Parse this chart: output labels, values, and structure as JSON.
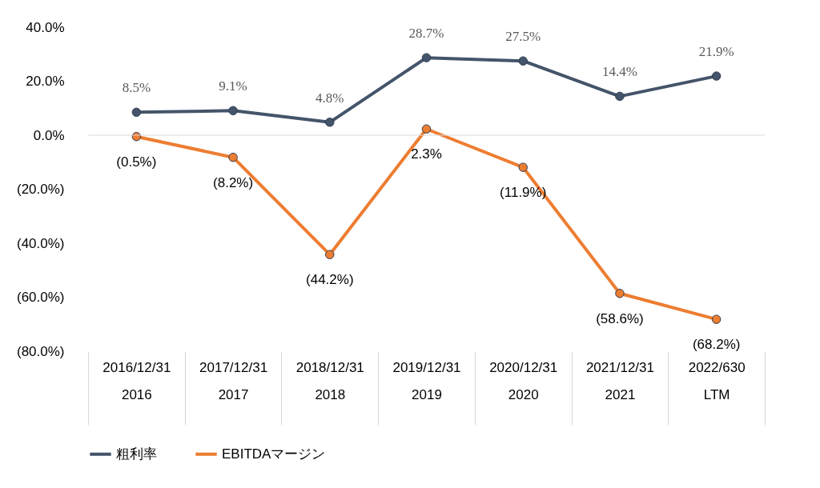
{
  "chart_data": {
    "type": "line",
    "categories": [
      "2016/12/31\n2016",
      "2017/12/31\n2017",
      "2018/12/31\n2018",
      "2019/12/31\n2019",
      "2020/12/31\n2020",
      "2021/12/31\n2021",
      "2022/630\nLTM"
    ],
    "series": [
      {
        "name": "粗利率",
        "color": "#44546a",
        "values": [
          8.5,
          9.1,
          4.8,
          28.7,
          27.5,
          14.4,
          21.9
        ],
        "value_labels": [
          "8.5%",
          "9.1%",
          "4.8%",
          "28.7%",
          "27.5%",
          "14.4%",
          "21.9%"
        ]
      },
      {
        "name": "EBITDAマージン",
        "color": "#ed7d31",
        "values": [
          -0.5,
          -8.2,
          -44.2,
          2.3,
          -11.9,
          -58.6,
          -68.2
        ],
        "value_labels": [
          "(0.5%)",
          "(8.2%)",
          "(44.2%)",
          "2.3%",
          "(11.9%)",
          "(58.6%)",
          "(68.2%)"
        ]
      }
    ],
    "ylim": [
      -80,
      40
    ],
    "yticks": [
      {
        "value": 40,
        "label": "40.0%"
      },
      {
        "value": 20,
        "label": "20.0%"
      },
      {
        "value": 0,
        "label": "0.0%"
      },
      {
        "value": -20,
        "label": "(20.0%)"
      },
      {
        "value": -40,
        "label": "(40.0%)"
      },
      {
        "value": -60,
        "label": "(60.0%)"
      },
      {
        "value": -80,
        "label": "(80.0%)"
      }
    ],
    "ref_lines": [
      {
        "axis": "y",
        "value": 0,
        "label": null,
        "color": "#d9d9d9"
      }
    ],
    "grid": false,
    "legend": "bottom",
    "marker": "circle",
    "line_style": "solid"
  }
}
